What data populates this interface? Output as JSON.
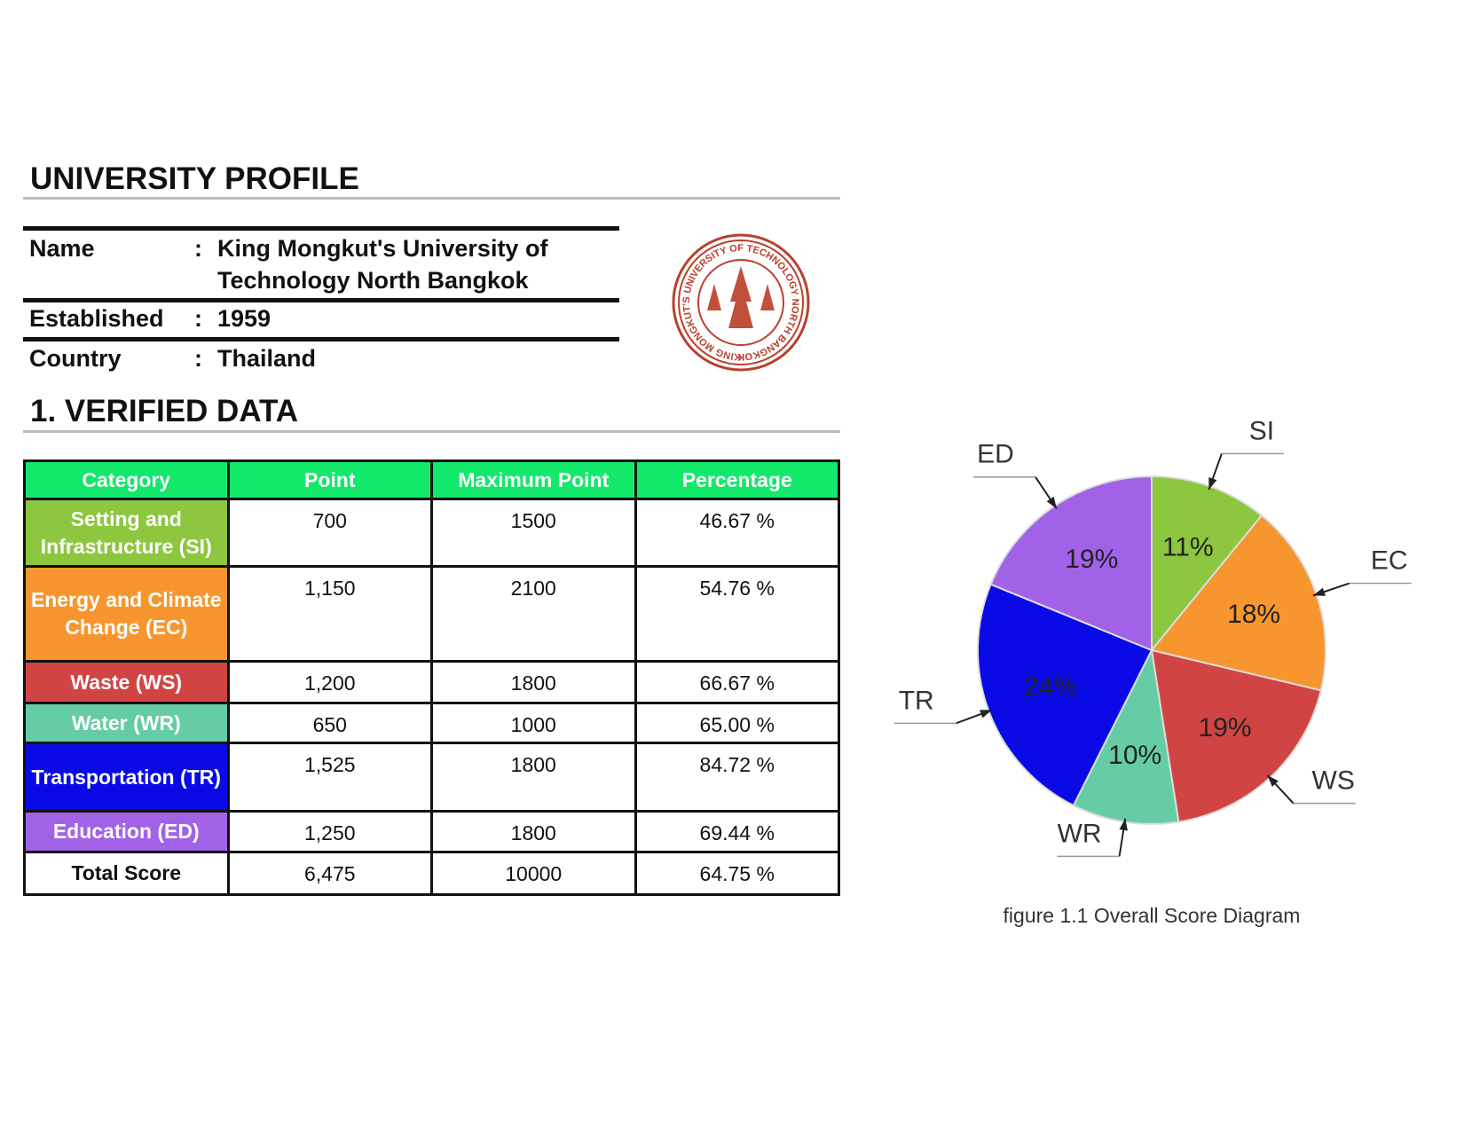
{
  "profile": {
    "title": "UNIVERSITY PROFILE",
    "separator": ":",
    "rows": [
      {
        "label": "Name",
        "value": "King Mongkut's University of Technology North Bangkok"
      },
      {
        "label": "Established",
        "value": "1959"
      },
      {
        "label": "Country",
        "value": "Thailand"
      }
    ],
    "seal_text": "KING MONGKUT'S UNIVERSITY OF TECHNOLOGY NORTH BANGKOK"
  },
  "section": {
    "title": "1. VERIFIED DATA"
  },
  "table": {
    "header": [
      "Category",
      "Point",
      "Maximum Point",
      "Percentage"
    ],
    "header_color": "#12e86a",
    "rows": [
      {
        "cells": [
          "Setting and Infrastructure (SI)",
          "700",
          "1500",
          "46.67 %"
        ],
        "color": "#8dc63f"
      },
      {
        "cells": [
          "Energy and Climate Change (EC)",
          "1,150",
          "2100",
          "54.76 %"
        ],
        "color": "#f7962e"
      },
      {
        "cells": [
          "Waste (WS)",
          "1,200",
          "1800",
          "66.67 %"
        ],
        "color": "#d04544"
      },
      {
        "cells": [
          "Water (WR)",
          "650",
          "1000",
          "65.00 %"
        ],
        "color": "#66cca6"
      },
      {
        "cells": [
          "Transportation (TR)",
          "1,525",
          "1800",
          "84.72 %"
        ],
        "color": "#0a0ae6"
      },
      {
        "cells": [
          "Education (ED)",
          "1,250",
          "1800",
          "69.44 %"
        ],
        "color": "#a262e8"
      },
      {
        "cells": [
          "Total Score",
          "6,475",
          "10000",
          "64.75 %"
        ],
        "color": "#ffffff"
      }
    ]
  },
  "chart_data": {
    "type": "pie",
    "caption": "figure 1.1 Overall Score Diagram",
    "categories": [
      "SI",
      "EC",
      "WS",
      "WR",
      "TR",
      "ED"
    ],
    "values": [
      11,
      18,
      19,
      10,
      24,
      19
    ],
    "value_labels": [
      "11%",
      "18%",
      "19%",
      "10%",
      "24%",
      "19%"
    ],
    "colors": [
      "#8dc63f",
      "#f7962e",
      "#d04544",
      "#66cca6",
      "#0a0ae6",
      "#a262e8"
    ]
  }
}
